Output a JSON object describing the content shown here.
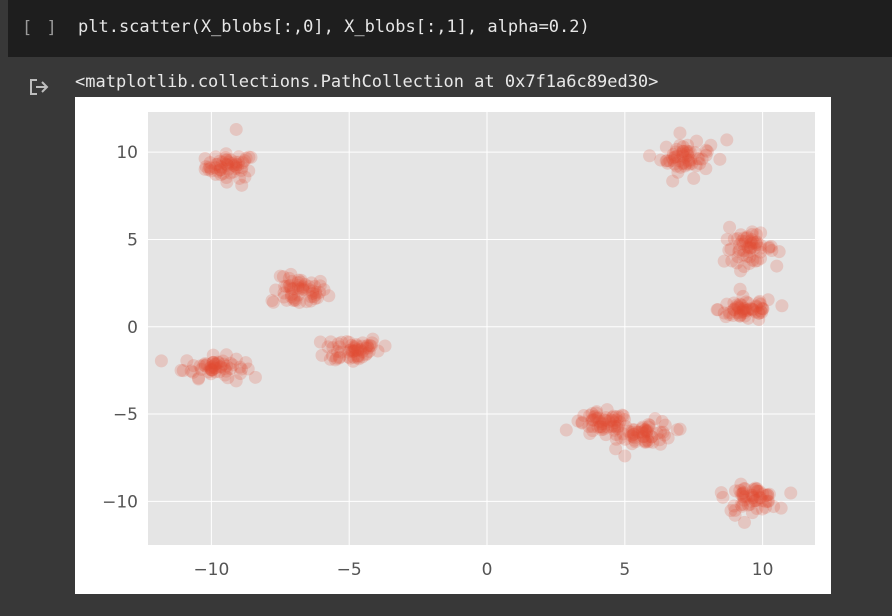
{
  "cell": {
    "run_bracket": "[ ]",
    "code": "plt.scatter(X_blobs[:,0], X_blobs[:,1], alpha=0.2)"
  },
  "output": {
    "icon": "output-arrow-icon",
    "text": "<matplotlib.collections.PathCollection at 0x7f1a6c89ed30>"
  },
  "colors": {
    "marker": "#E24A33",
    "plot_background": "#E5E5E5",
    "grid": "#FFFFFF",
    "tick_label": "#555555"
  },
  "chart_data": {
    "type": "scatter",
    "style": "ggplot",
    "alpha": 0.2,
    "grid": true,
    "xlim": [
      -12.3,
      11.9
    ],
    "ylim": [
      -12.5,
      12.3
    ],
    "xticks": [
      -10,
      -5,
      0,
      5,
      10
    ],
    "xtick_labels": [
      "−10",
      "−5",
      "0",
      "5",
      "10"
    ],
    "yticks": [
      10,
      5,
      0,
      -5,
      -10
    ],
    "ytick_labels": [
      "10",
      "5",
      "0",
      "−5",
      "−10"
    ],
    "clusters": [
      {
        "center": [
          -9.3,
          9.2
        ],
        "spread": [
          0.45,
          0.35
        ],
        "count": 55
      },
      {
        "center": [
          -6.8,
          2.0
        ],
        "spread": [
          0.5,
          0.4
        ],
        "count": 55
      },
      {
        "center": [
          -4.9,
          -1.3
        ],
        "spread": [
          0.5,
          0.4
        ],
        "count": 55
      },
      {
        "center": [
          -9.9,
          -2.3
        ],
        "spread": [
          0.55,
          0.3
        ],
        "count": 55
      },
      {
        "center": [
          7.2,
          9.7
        ],
        "spread": [
          0.45,
          0.4
        ],
        "count": 55
      },
      {
        "center": [
          9.5,
          4.5
        ],
        "spread": [
          0.45,
          0.4
        ],
        "count": 55
      },
      {
        "center": [
          9.4,
          1.0
        ],
        "spread": [
          0.5,
          0.35
        ],
        "count": 55
      },
      {
        "center": [
          4.2,
          -5.6
        ],
        "spread": [
          0.5,
          0.35
        ],
        "count": 55
      },
      {
        "center": [
          5.8,
          -6.1
        ],
        "spread": [
          0.5,
          0.35
        ],
        "count": 55
      },
      {
        "center": [
          9.6,
          -9.8
        ],
        "spread": [
          0.45,
          0.35
        ],
        "count": 55
      }
    ],
    "points": [
      [
        -9.1,
        11.3
      ],
      [
        -8.9,
        8.1
      ],
      [
        -10.1,
        9.0
      ],
      [
        -7.5,
        2.9
      ],
      [
        -7.8,
        1.5
      ],
      [
        -4.2,
        -1.1
      ],
      [
        -3.7,
        -1.1
      ],
      [
        -5.5,
        -1.9
      ],
      [
        -11.1,
        -2.5
      ],
      [
        -9.1,
        -3.1
      ],
      [
        7.0,
        11.1
      ],
      [
        8.7,
        10.7
      ],
      [
        6.5,
        9.5
      ],
      [
        7.5,
        8.5
      ],
      [
        8.8,
        5.7
      ],
      [
        10.6,
        4.3
      ],
      [
        9.2,
        3.2
      ],
      [
        8.8,
        0.7
      ],
      [
        10.7,
        1.2
      ],
      [
        3.3,
        -5.4
      ],
      [
        5.0,
        -7.4
      ],
      [
        6.9,
        -5.9
      ],
      [
        8.5,
        -9.5
      ],
      [
        10.4,
        -10.3
      ],
      [
        9.0,
        -10.8
      ]
    ]
  }
}
